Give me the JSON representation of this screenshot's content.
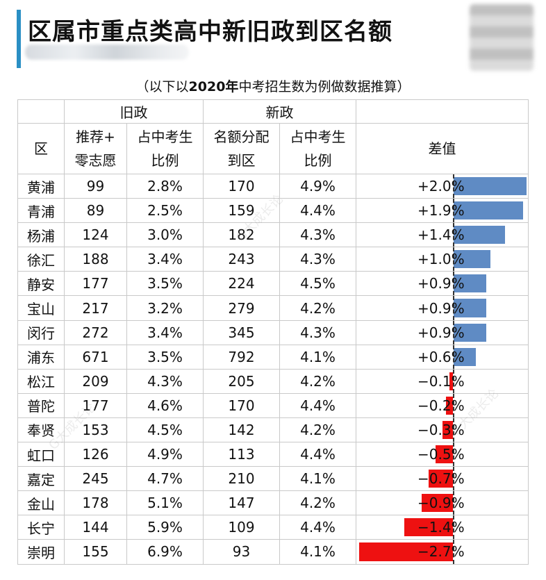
{
  "title": "区属市重点类高中新旧政到区名额",
  "subtitle_prefix": "（以下以",
  "subtitle_year": "2020年",
  "subtitle_suffix": "中考招生数为例做数据推算）",
  "colors": {
    "accent": "#2a8fc4",
    "positive": "#5f8bc4",
    "negative": "#ee1111"
  },
  "header": {
    "district": "区",
    "old_policy": "旧政",
    "new_policy": "新政",
    "old_count_line1": "推荐+",
    "old_count_line2": "零志愿",
    "old_ratio_line1": "占中考生",
    "old_ratio_line2": "比例",
    "new_count_line1": "名额分配",
    "new_count_line2": "到区",
    "new_ratio_line1": "占中考生",
    "new_ratio_line2": "比例",
    "diff": "差值"
  },
  "chart_data": {
    "type": "table",
    "columns": [
      "区",
      "推荐+零志愿",
      "旧政占中考生比例",
      "名额分配到区",
      "新政占中考生比例",
      "差值"
    ],
    "rows": [
      {
        "district": "黄浦",
        "old_count": "99",
        "old_ratio": "2.8%",
        "new_count": "170",
        "new_ratio": "4.9%",
        "diff_label": "+2.0%",
        "diff": 2.0
      },
      {
        "district": "青浦",
        "old_count": "89",
        "old_ratio": "2.5%",
        "new_count": "159",
        "new_ratio": "4.4%",
        "diff_label": "+1.9%",
        "diff": 1.9
      },
      {
        "district": "杨浦",
        "old_count": "124",
        "old_ratio": "3.0%",
        "new_count": "182",
        "new_ratio": "4.3%",
        "diff_label": "+1.4%",
        "diff": 1.4
      },
      {
        "district": "徐汇",
        "old_count": "188",
        "old_ratio": "3.4%",
        "new_count": "243",
        "new_ratio": "4.3%",
        "diff_label": "+1.0%",
        "diff": 1.0
      },
      {
        "district": "静安",
        "old_count": "177",
        "old_ratio": "3.5%",
        "new_count": "224",
        "new_ratio": "4.5%",
        "diff_label": "+0.9%",
        "diff": 0.9
      },
      {
        "district": "宝山",
        "old_count": "217",
        "old_ratio": "3.2%",
        "new_count": "279",
        "new_ratio": "4.2%",
        "diff_label": "+0.9%",
        "diff": 0.9
      },
      {
        "district": "闵行",
        "old_count": "272",
        "old_ratio": "3.4%",
        "new_count": "345",
        "new_ratio": "4.3%",
        "diff_label": "+0.9%",
        "diff": 0.9
      },
      {
        "district": "浦东",
        "old_count": "671",
        "old_ratio": "3.5%",
        "new_count": "792",
        "new_ratio": "4.1%",
        "diff_label": "+0.6%",
        "diff": 0.6
      },
      {
        "district": "松江",
        "old_count": "209",
        "old_ratio": "4.3%",
        "new_count": "205",
        "new_ratio": "4.2%",
        "diff_label": "−0.1%",
        "diff": -0.1
      },
      {
        "district": "普陀",
        "old_count": "177",
        "old_ratio": "4.6%",
        "new_count": "170",
        "new_ratio": "4.4%",
        "diff_label": "−0.2%",
        "diff": -0.2
      },
      {
        "district": "奉贤",
        "old_count": "153",
        "old_ratio": "4.5%",
        "new_count": "142",
        "new_ratio": "4.2%",
        "diff_label": "−0.3%",
        "diff": -0.3
      },
      {
        "district": "虹口",
        "old_count": "126",
        "old_ratio": "4.9%",
        "new_count": "113",
        "new_ratio": "4.4%",
        "diff_label": "−0.5%",
        "diff": -0.5
      },
      {
        "district": "嘉定",
        "old_count": "245",
        "old_ratio": "4.7%",
        "new_count": "210",
        "new_ratio": "4.1%",
        "diff_label": "−0.7%",
        "diff": -0.7
      },
      {
        "district": "金山",
        "old_count": "178",
        "old_ratio": "5.1%",
        "new_count": "147",
        "new_ratio": "4.2%",
        "diff_label": "−0.9%",
        "diff": -0.9
      },
      {
        "district": "长宁",
        "old_count": "144",
        "old_ratio": "5.9%",
        "new_count": "109",
        "new_ratio": "4.4%",
        "diff_label": "−1.4%",
        "diff": -1.4
      },
      {
        "district": "崇明",
        "old_count": "155",
        "old_ratio": "6.9%",
        "new_count": "93",
        "new_ratio": "4.1%",
        "diff_label": "−2.7%",
        "diff": -2.7
      }
    ],
    "diff_range": [
      -2.7,
      2.0
    ]
  }
}
